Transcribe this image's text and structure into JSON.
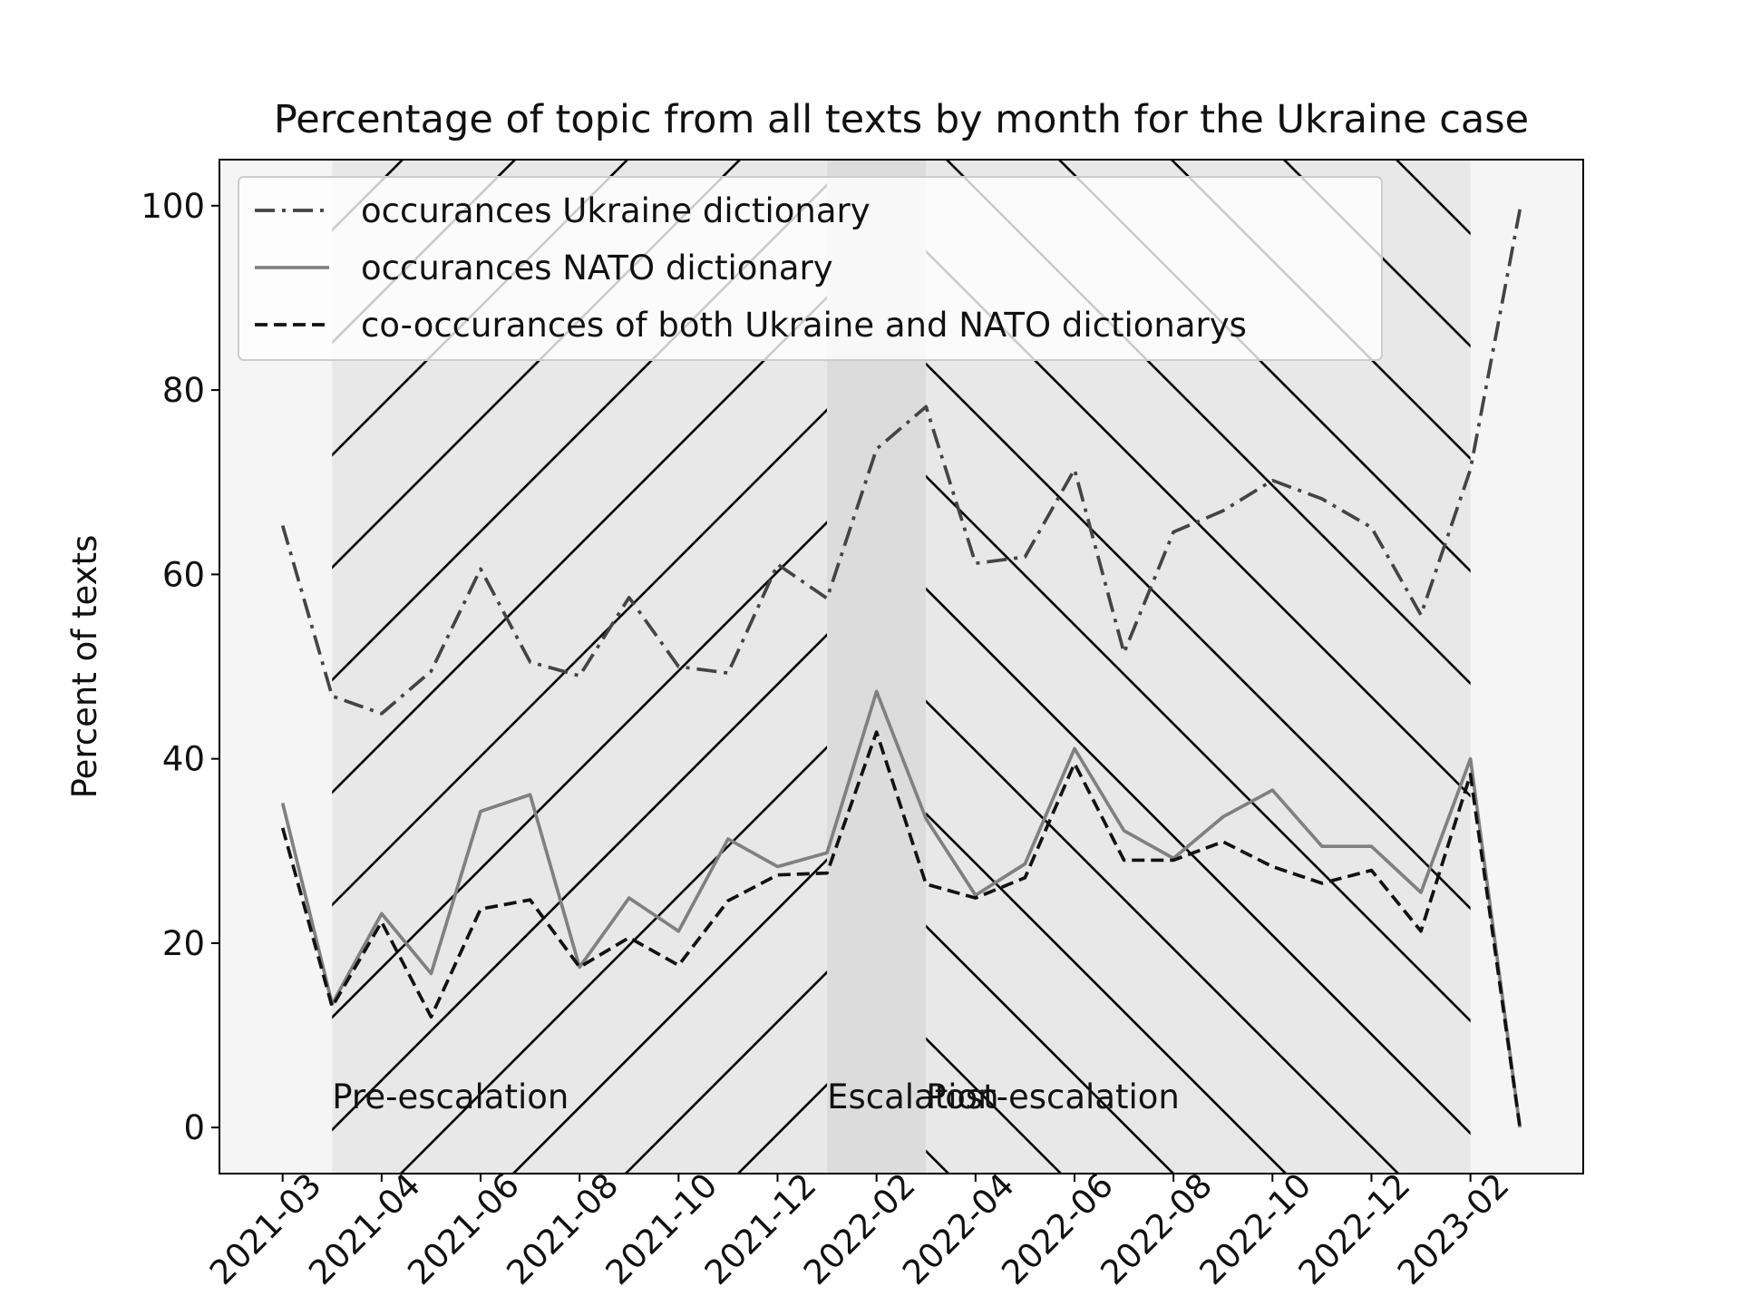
{
  "chart_data": {
    "type": "line",
    "title": "Percentage of topic from all texts by month for the Ukraine case",
    "y_label": "Percent of texts",
    "categories": [
      "2021-03",
      null,
      "2021-04",
      null,
      "2021-06",
      null,
      "2021-08",
      null,
      "2021-10",
      null,
      "2021-12",
      null,
      "2022-02",
      null,
      "2022-04",
      null,
      "2022-06",
      null,
      "2022-08",
      null,
      "2022-10",
      null,
      "2022-12",
      null,
      "2023-02",
      null
    ],
    "series": [
      {
        "name": "occurances Ukraine dictionary",
        "color": "#444444",
        "dash": "dashdot",
        "values": [
          65.3,
          46.8,
          44.9,
          49.5,
          60.6,
          50.5,
          49.0,
          57.5,
          50.0,
          49.3,
          61.1,
          57.4,
          73.6,
          78.2,
          61.2,
          61.9,
          71.4,
          51.5,
          64.6,
          66.9,
          70.2,
          68.2,
          65.1,
          55.6,
          71.4,
          99.6
        ]
      },
      {
        "name": "occurances NATO dictionary",
        "color": "#808080",
        "dash": "solid",
        "values": [
          35.2,
          13.4,
          23.2,
          16.7,
          34.3,
          36.1,
          17.4,
          24.9,
          21.3,
          31.3,
          28.3,
          29.8,
          47.3,
          33.5,
          25.2,
          28.6,
          41.1,
          32.2,
          29.2,
          33.7,
          36.6,
          30.5,
          30.5,
          25.5,
          40.0,
          0
        ]
      },
      {
        "name": "co-occurances of both Ukraine and NATO dictionarys",
        "color": "#111111",
        "dash": "dashed",
        "values": [
          32.5,
          13.1,
          22.3,
          12.0,
          23.7,
          24.7,
          17.4,
          20.6,
          17.6,
          24.6,
          27.4,
          27.6,
          42.9,
          26.4,
          24.9,
          27.1,
          39.5,
          29.0,
          29.0,
          31.0,
          28.3,
          26.5,
          27.9,
          21.3,
          38.3,
          0
        ]
      }
    ],
    "spans": [
      {
        "label": "Pre-escalation",
        "start": 1,
        "end": 11,
        "color": "#e8e8e8",
        "hatch": "/"
      },
      {
        "label": "Escalation",
        "start": 11,
        "end": 13,
        "color": "#dcdcdc"
      },
      {
        "label": "Post-escalation",
        "start": 13,
        "end": 24,
        "color": "#e8e8e8",
        "hatch": "\\"
      }
    ],
    "ylim": [
      -5,
      105
    ],
    "yticks": [
      0,
      20,
      40,
      60,
      80,
      100
    ],
    "legend": "upper left"
  }
}
